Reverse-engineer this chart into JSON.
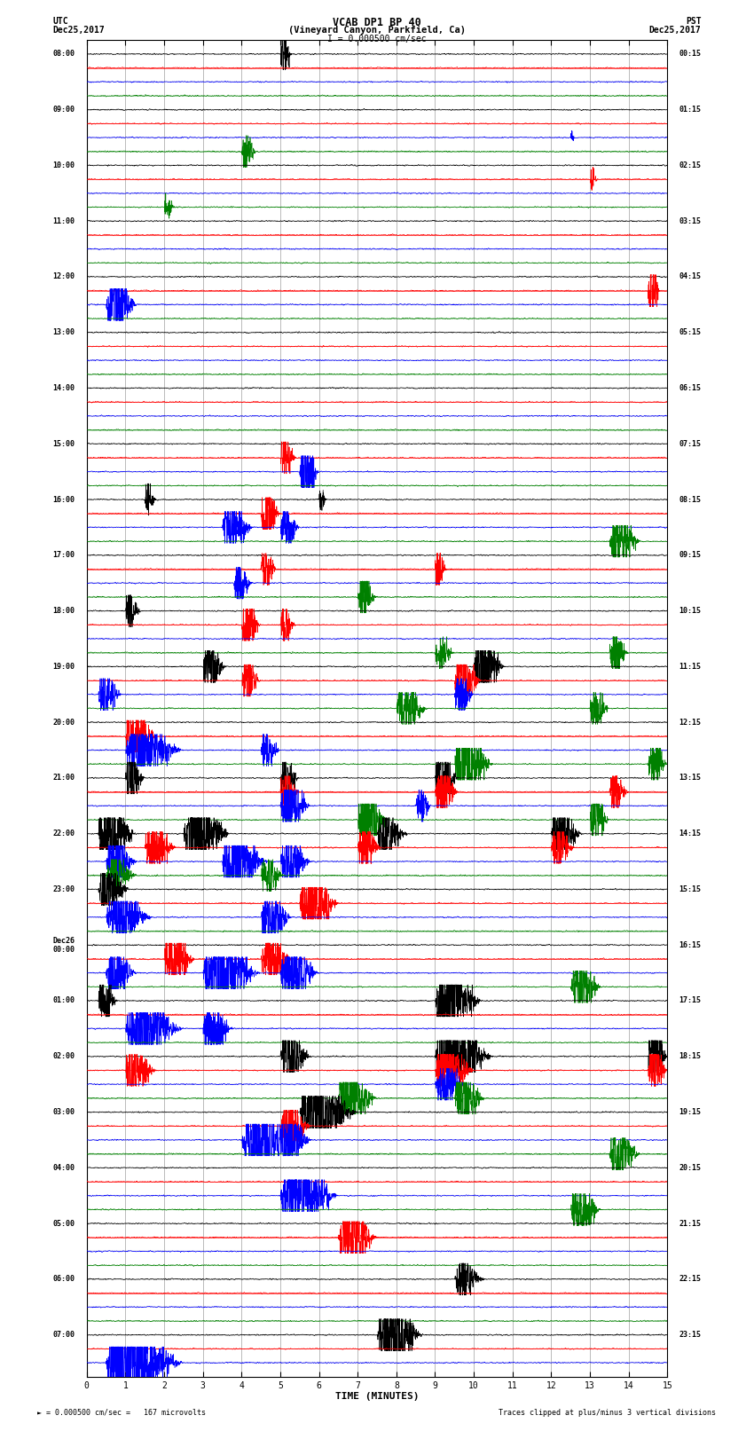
{
  "title_line1": "VCAB DP1 BP 40",
  "title_line2": "(Vineyard Canyon, Parkfield, Ca)",
  "title_line3": "I = 0.000500 cm/sec",
  "left_header1": "UTC",
  "left_header2": "Dec25,2017",
  "right_header1": "PST",
  "right_header2": "Dec25,2017",
  "xlabel": "TIME (MINUTES)",
  "footer_left": "= 0.000500 cm/sec =   167 microvolts",
  "footer_right": "Traces clipped at plus/minus 3 vertical divisions",
  "xlim": [
    0,
    15
  ],
  "xticks": [
    0,
    1,
    2,
    3,
    4,
    5,
    6,
    7,
    8,
    9,
    10,
    11,
    12,
    13,
    14,
    15
  ],
  "colors_cycle": [
    "black",
    "red",
    "blue",
    "green"
  ],
  "background_color": "white",
  "left_times_utc": [
    "08:00",
    "",
    "",
    "",
    "09:00",
    "",
    "",
    "",
    "10:00",
    "",
    "",
    "",
    "11:00",
    "",
    "",
    "",
    "12:00",
    "",
    "",
    "",
    "13:00",
    "",
    "",
    "",
    "14:00",
    "",
    "",
    "",
    "15:00",
    "",
    "",
    "",
    "16:00",
    "",
    "",
    "",
    "17:00",
    "",
    "",
    "",
    "18:00",
    "",
    "",
    "",
    "19:00",
    "",
    "",
    "",
    "20:00",
    "",
    "",
    "",
    "21:00",
    "",
    "",
    "",
    "22:00",
    "",
    "",
    "",
    "23:00",
    "",
    "",
    "",
    "Dec26\n00:00",
    "",
    "",
    "",
    "01:00",
    "",
    "",
    "",
    "02:00",
    "",
    "",
    "",
    "03:00",
    "",
    "",
    "",
    "04:00",
    "",
    "",
    "",
    "05:00",
    "",
    "",
    "",
    "06:00",
    "",
    "",
    "",
    "07:00",
    "",
    ""
  ],
  "right_times_pst": [
    "00:15",
    "",
    "",
    "",
    "01:15",
    "",
    "",
    "",
    "02:15",
    "",
    "",
    "",
    "03:15",
    "",
    "",
    "",
    "04:15",
    "",
    "",
    "",
    "05:15",
    "",
    "",
    "",
    "06:15",
    "",
    "",
    "",
    "07:15",
    "",
    "",
    "",
    "08:15",
    "",
    "",
    "",
    "09:15",
    "",
    "",
    "",
    "10:15",
    "",
    "",
    "",
    "11:15",
    "",
    "",
    "",
    "12:15",
    "",
    "",
    "",
    "13:15",
    "",
    "",
    "",
    "14:15",
    "",
    "",
    "",
    "15:15",
    "",
    "",
    "",
    "16:15",
    "",
    "",
    "",
    "17:15",
    "",
    "",
    "",
    "18:15",
    "",
    "",
    "",
    "19:15",
    "",
    "",
    "",
    "20:15",
    "",
    "",
    "",
    "21:15",
    "",
    "",
    "",
    "22:15",
    "",
    "",
    "",
    "23:15",
    "",
    ""
  ],
  "noise_level": 0.05,
  "clip_level": 3.0,
  "trace_scale": 0.38
}
